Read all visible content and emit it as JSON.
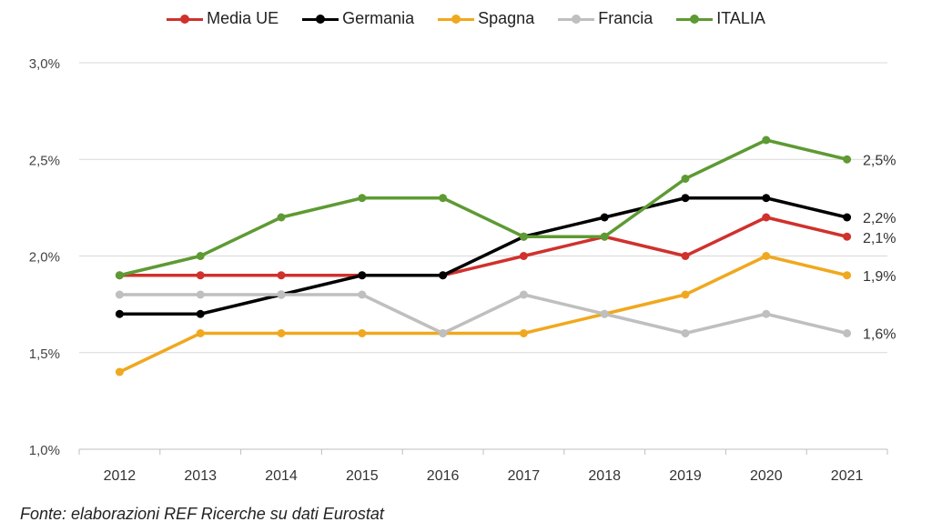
{
  "chart_data": {
    "type": "line",
    "title": "",
    "xlabel": "",
    "ylabel": "",
    "categories": [
      "2012",
      "2013",
      "2014",
      "2015",
      "2016",
      "2017",
      "2018",
      "2019",
      "2020",
      "2021"
    ],
    "ylim": [
      1.0,
      3.0
    ],
    "yticks": [
      1.0,
      1.5,
      2.0,
      2.5,
      3.0
    ],
    "ytick_labels": [
      "1,0%",
      "1,5%",
      "2,0%",
      "2,5%",
      "3,0%"
    ],
    "grid": "horizontal",
    "legend_position": "top",
    "series": [
      {
        "name": "Media UE",
        "color": "#d0312d",
        "values": [
          1.9,
          1.9,
          1.9,
          1.9,
          1.9,
          2.0,
          2.1,
          2.0,
          2.2,
          2.1
        ],
        "end_label": "2,1%"
      },
      {
        "name": "Germania",
        "color": "#000000",
        "values": [
          1.7,
          1.7,
          1.8,
          1.9,
          1.9,
          2.1,
          2.2,
          2.3,
          2.3,
          2.2
        ],
        "end_label": "2,2%"
      },
      {
        "name": "Spagna",
        "color": "#f0a81e",
        "values": [
          1.4,
          1.6,
          1.6,
          1.6,
          1.6,
          1.6,
          1.7,
          1.8,
          2.0,
          1.9
        ],
        "end_label": "1,9%"
      },
      {
        "name": "Francia",
        "color": "#bfbfbf",
        "values": [
          1.8,
          1.8,
          1.8,
          1.8,
          1.6,
          1.8,
          1.7,
          1.6,
          1.7,
          1.6
        ],
        "end_label": "1,6%"
      },
      {
        "name": "ITALIA",
        "color": "#5e9a33",
        "values": [
          1.9,
          2.0,
          2.2,
          2.3,
          2.3,
          2.1,
          2.1,
          2.4,
          2.6,
          2.5
        ],
        "end_label": "2,5%"
      }
    ]
  },
  "source_note": "Fonte: elaborazioni REF Ricerche su dati Eurostat"
}
